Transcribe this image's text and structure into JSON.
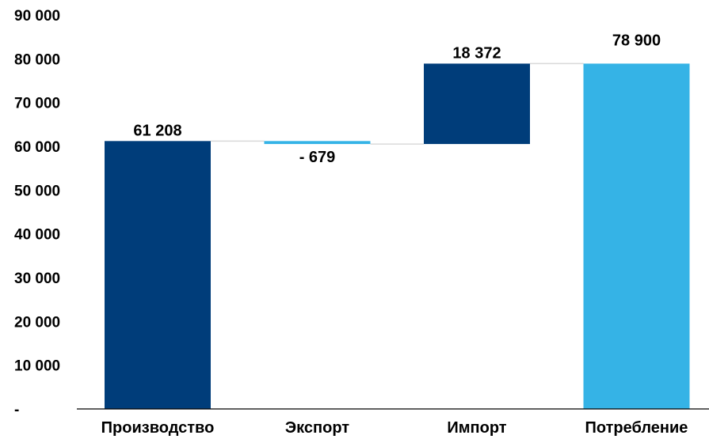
{
  "chart_data": {
    "type": "bar",
    "subtype": "waterfall",
    "title": "",
    "xlabel": "",
    "ylabel": "",
    "ylim": [
      0,
      90000
    ],
    "grid": false,
    "legend": "none",
    "yticks": [
      {
        "value": 90000,
        "label": "90 000"
      },
      {
        "value": 80000,
        "label": "80 000"
      },
      {
        "value": 70000,
        "label": "70 000"
      },
      {
        "value": 60000,
        "label": "60 000"
      },
      {
        "value": 50000,
        "label": "50 000"
      },
      {
        "value": 40000,
        "label": "40 000"
      },
      {
        "value": 30000,
        "label": "30 000"
      },
      {
        "value": 20000,
        "label": "20 000"
      },
      {
        "value": 10000,
        "label": "10 000"
      },
      {
        "value": 0,
        "label": "-"
      }
    ],
    "categories": [
      "Производство",
      "Экспорт",
      "Импорт",
      "Потребление"
    ],
    "values": [
      61208,
      -679,
      18372,
      78900
    ],
    "bars": [
      {
        "category": "Производство",
        "value": 61208,
        "start": 0,
        "end": 61208,
        "label": "61 208",
        "color": "#003d7a"
      },
      {
        "category": "Экспорт",
        "value": -679,
        "start": 61208,
        "end": 60529,
        "label": "- 679",
        "color": "#35b3e6"
      },
      {
        "category": "Импорт",
        "value": 18372,
        "start": 60529,
        "end": 78901,
        "label": "18 372",
        "color": "#003d7a"
      },
      {
        "category": "Потребление",
        "value": 78900,
        "start": 0,
        "end": 78900,
        "label": "78 900",
        "color": "#35b3e6"
      }
    ],
    "colors": {
      "increase": "#003d7a",
      "decrease_and_total": "#35b3e6",
      "axis": "#000000",
      "connector": "#d9d9d9"
    }
  }
}
